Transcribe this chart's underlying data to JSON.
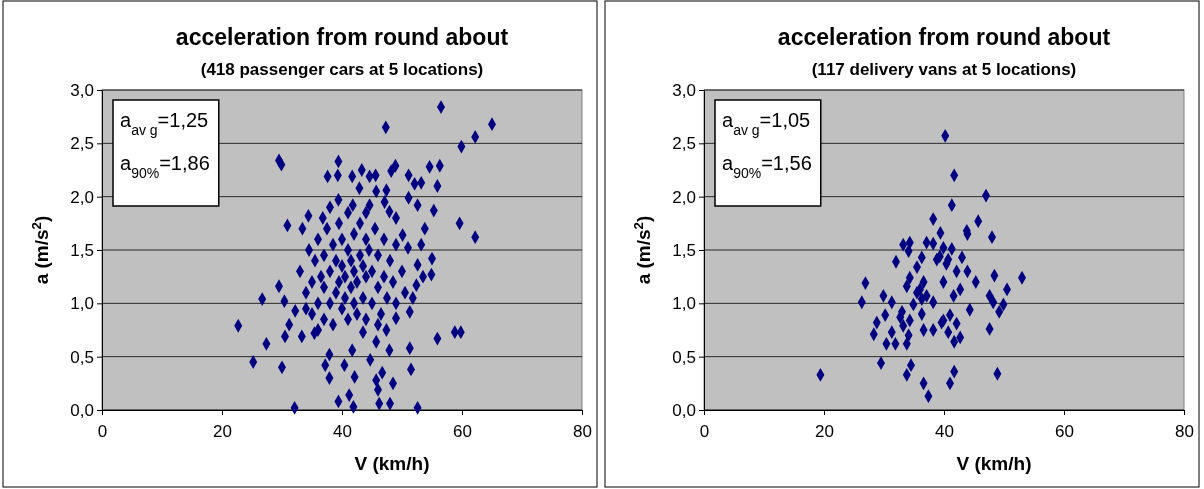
{
  "chart_data": [
    {
      "type": "scatter",
      "title": "acceleration from round about",
      "subtitle": "(418 passenger cars at 5 locations)",
      "xlabel": "V (km/h)",
      "ylabel": "a (m/s$^{2}$)",
      "annotations": [
        "a$_{av g}$=1,25",
        "a$_{90%}$=1,86"
      ],
      "grid": "y",
      "marker": "diamond",
      "xlim": [
        0,
        80
      ],
      "xticks": [
        0,
        20,
        40,
        60,
        80
      ],
      "ylim": [
        0,
        3
      ],
      "yticks": [
        {
          "value": 0,
          "label": "0,0"
        },
        {
          "value": 0.5,
          "label": "0,5"
        },
        {
          "value": 1,
          "label": "1,0"
        },
        {
          "value": 1.5,
          "label": "1,5"
        },
        {
          "value": 2,
          "label": "2,0"
        },
        {
          "value": 2.5,
          "label": "2,5"
        },
        {
          "value": 3,
          "label": "3,0"
        }
      ],
      "series": [
        {
          "color": "#000080",
          "x": [
            56.5,
            47.3,
            65.0,
            62.2,
            59.9,
            29.5,
            29.9,
            39.4,
            54.6,
            56.3,
            48.9,
            48.2,
            37.6,
            39.3,
            41.7,
            43.3,
            44.6,
            45.6,
            51.1,
            52.1,
            53.2,
            55.9,
            42.9,
            45.7,
            47.4,
            39.4,
            47.1,
            51.1,
            52.6,
            55.3,
            59.6,
            62.2,
            30.9,
            34.4,
            33.4,
            53.8,
            53.2,
            55.0,
            54.9,
            29.5,
            26.7,
            30.4,
            22.7,
            27.4,
            25.2,
            30.0,
            32.1,
            55.9,
            58.8,
            59.8,
            51.3,
            51.5,
            47.9,
            46.7,
            45.7,
            48.5,
            46.0,
            46.2,
            48.0,
            52.6,
            41.9,
            41.2,
            39.4,
            42.1,
            37.9,
            40.4,
            37.2,
            44.7,
            41.7,
            37.9,
            45.7,
            43.5,
            47.4,
            33.3,
            30.5,
            35.4,
            31.2,
            32.2,
            49.0,
            51.3,
            51.8,
            52.4,
            53.5,
            52.6,
            51.0,
            50.1,
            49.0,
            47.9,
            41.8,
            44.6,
            36.8,
            33,
            34,
            34.5,
            35,
            35,
            35.5,
            36,
            36,
            36.5,
            37,
            37,
            37,
            37.5,
            38,
            38,
            38.5,
            38.5,
            39,
            39,
            39.5,
            39.5,
            40,
            40,
            40,
            40.5,
            40.5,
            41,
            41,
            41,
            41.5,
            41.5,
            42,
            42,
            42,
            42.5,
            42.5,
            43,
            43,
            43.5,
            43.5,
            44,
            44,
            44,
            44.5,
            45,
            45,
            45.5,
            46,
            46,
            46.5,
            47,
            47,
            47.5,
            48,
            48.5,
            49,
            49,
            50,
            50.5,
            38,
            44,
            34,
            36,
            46
          ],
          "values": [
            2.84,
            2.65,
            2.68,
            2.56,
            2.47,
            2.34,
            2.3,
            2.33,
            2.28,
            2.29,
            2.29,
            2.24,
            2.19,
            2.2,
            2.19,
            2.25,
            2.19,
            2.2,
            2.2,
            2.12,
            2.13,
            2.1,
            2.08,
            2.05,
            2.06,
            1.97,
            1.95,
            1.99,
            1.92,
            1.87,
            1.75,
            1.62,
            1.73,
            1.82,
            1.7,
            1.7,
            1.55,
            1.42,
            1.27,
            1.16,
            1.04,
            1.02,
            0.79,
            0.62,
            0.45,
            0.4,
            0.02,
            0.67,
            0.73,
            0.73,
            0.58,
            0.38,
            0.56,
            0.35,
            0.28,
            0.25,
            0.19,
            0.06,
            0.06,
            0.02,
            0.03,
            0.14,
            0.08,
            0.31,
            0.3,
            0.42,
            0.42,
            0.47,
            0.56,
            0.52,
            0.64,
            0.73,
            0.75,
            0.69,
            0.69,
            0.72,
            0.8,
            0.93,
            0.86,
            0.92,
            1.05,
            1.17,
            1.25,
            1.36,
            1.52,
            1.64,
            1.8,
            1.86,
            1.92,
            1.92,
            1.8,
            1.3,
            1.1,
            1.5,
            0.9,
            1.2,
            1.4,
            1.0,
            1.6,
            1.25,
            0.85,
            1.15,
            1.45,
            1.7,
            1.0,
            1.3,
            1.55,
            0.8,
            1.1,
            1.4,
            1.2,
            1.75,
            0.95,
            1.35,
            1.6,
            1.05,
            1.25,
            0.85,
            1.5,
            1.85,
            1.15,
            1.4,
            1.0,
            1.3,
            1.65,
            0.9,
            1.2,
            1.45,
            1.75,
            1.05,
            1.35,
            0.85,
            1.25,
            1.6,
            1.5,
            1.0,
            1.3,
            1.7,
            1.15,
            1.45,
            0.9,
            1.25,
            1.6,
            1.05,
            1.4,
            1.2,
            1.0,
            1.55,
            1.3,
            1.1,
            1.9,
            1.85,
            0.95,
            0.75,
            0.8
          ]
        }
      ]
    },
    {
      "type": "scatter",
      "title": "acceleration from round about",
      "subtitle": "(117 delivery vans at 5 locations)",
      "xlabel": "V (km/h)",
      "ylabel": "a (m/s$^{2}$)",
      "annotations": [
        "a$_{av g}$=1,05",
        "a$_{90%}$=1,56"
      ],
      "grid": "y",
      "marker": "diamond",
      "xlim": [
        0,
        80
      ],
      "xticks": [
        0,
        20,
        40,
        60,
        80
      ],
      "ylim": [
        0,
        3
      ],
      "yticks": [
        {
          "value": 0,
          "label": "0,0"
        },
        {
          "value": 0.5,
          "label": "0,5"
        },
        {
          "value": 1,
          "label": "1,0"
        },
        {
          "value": 1.5,
          "label": "1,5"
        },
        {
          "value": 2,
          "label": "2,0"
        },
        {
          "value": 2.5,
          "label": "2,5"
        },
        {
          "value": 3,
          "label": "3,0"
        }
      ],
      "series": [
        {
          "color": "#000080",
          "x": [
            40.2,
            41.7,
            47.0,
            41.3,
            38.2,
            45.7,
            39.4,
            43.8,
            43.9,
            48.0,
            33.2,
            34.3,
            34.1,
            37.1,
            38.2,
            39.9,
            41.3,
            43.0,
            36.3,
            32.0,
            38.8,
            40.4,
            35.5,
            42.1,
            43.9,
            34.3,
            48.4,
            53.0,
            45.3,
            39.9,
            33.8,
            36.6,
            26.9,
            50.5,
            42.7,
            35.5,
            37.1,
            47.6,
            29.9,
            41.6,
            26.3,
            31.3,
            34.9,
            38.2,
            49.9,
            48.2,
            44.3,
            49.2,
            33.0,
            36.3,
            30.2,
            41.0,
            34.3,
            28.8,
            39.9,
            42.1,
            33.2,
            38.2,
            36.6,
            47.6,
            28.3,
            31.3,
            34.1,
            40.7,
            42.7,
            30.4,
            33.8,
            31.9,
            41.7,
            29.5,
            34.5,
            33.8,
            41.7,
            48.9,
            19.4,
            36.6,
            41.0,
            37.4,
            36.0,
            36.3,
            39.3,
            40.7,
            32.7,
            39.6
          ],
          "values": [
            2.57,
            2.2,
            2.01,
            1.92,
            1.79,
            1.77,
            1.66,
            1.68,
            1.65,
            1.62,
            1.55,
            1.57,
            1.49,
            1.57,
            1.56,
            1.52,
            1.51,
            1.43,
            1.43,
            1.39,
            1.41,
            1.37,
            1.34,
            1.3,
            1.3,
            1.24,
            1.26,
            1.24,
            1.2,
            1.2,
            1.16,
            1.2,
            1.19,
            1.13,
            1.13,
            1.1,
            1.07,
            1.07,
            1.07,
            1.07,
            1.01,
            1.01,
            0.99,
            1.01,
            0.99,
            1.01,
            0.94,
            0.92,
            0.92,
            0.9,
            0.89,
            0.89,
            0.84,
            0.82,
            0.84,
            0.81,
            0.79,
            0.75,
            0.75,
            0.76,
            0.71,
            0.73,
            0.7,
            0.73,
            0.68,
            0.62,
            0.62,
            0.62,
            0.64,
            0.44,
            0.42,
            0.33,
            0.36,
            0.34,
            0.33,
            0.25,
            0.25,
            0.13,
            1.13,
            1.04,
            1.44,
            1.41,
            0.87,
            0.82
          ]
        }
      ]
    }
  ]
}
